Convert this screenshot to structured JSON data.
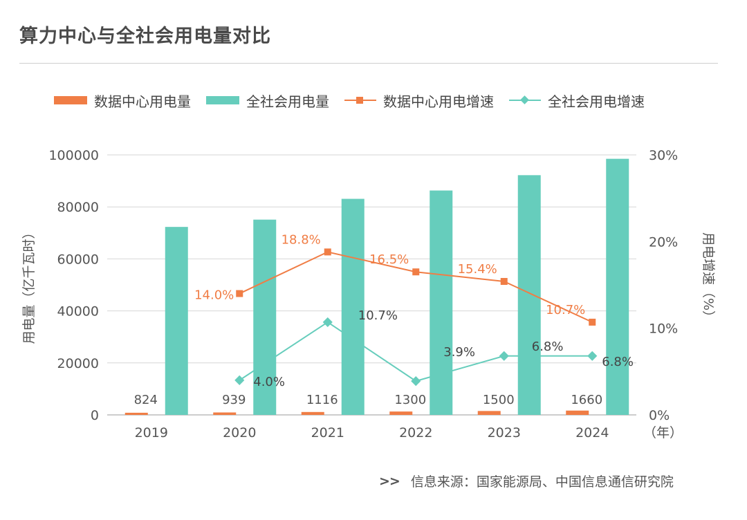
{
  "title": "算力中心与全社会用电量对比",
  "source": {
    "arrows": ">>",
    "text": "信息来源：国家能源局、中国信息通信研究院"
  },
  "legend": [
    {
      "label": "数据中心用电量",
      "kind": "bar",
      "color": "#f07d45"
    },
    {
      "label": "全社会用电量",
      "kind": "bar",
      "color": "#66cdbc"
    },
    {
      "label": "数据中心用电增速",
      "kind": "line-square",
      "color": "#f07d45"
    },
    {
      "label": "全社会用电增速",
      "kind": "line-diamond",
      "color": "#66cdbc"
    }
  ],
  "chart_data": {
    "type": "bar",
    "title": "算力中心与全社会用电量对比",
    "categories": [
      "2019",
      "2020",
      "2021",
      "2022",
      "2023",
      "2024"
    ],
    "x_unit_label": "（年）",
    "ylabel": "用电量（亿千瓦时）",
    "ylim": [
      0,
      100000
    ],
    "yticks": [
      0,
      20000,
      40000,
      60000,
      80000,
      100000
    ],
    "y2label": "用电增速（%）",
    "y2lim": [
      0,
      30
    ],
    "y2ticks": [
      "0%",
      "10%",
      "20%",
      "30%"
    ],
    "grid": true,
    "series": [
      {
        "name": "数据中心用电量",
        "type": "bar",
        "axis": "left",
        "color": "#f07d45",
        "values": [
          824,
          939,
          1116,
          1300,
          1500,
          1660
        ],
        "labels": [
          "824",
          "939",
          "1116",
          "1300",
          "1500",
          "1660"
        ]
      },
      {
        "name": "全社会用电量",
        "type": "bar",
        "axis": "left",
        "color": "#66cdbc",
        "values": [
          72300,
          75100,
          83100,
          86300,
          92200,
          98500
        ]
      },
      {
        "name": "数据中心用电增速",
        "type": "line",
        "axis": "right",
        "marker": "square",
        "color": "#f07d45",
        "values": [
          null,
          14.0,
          18.8,
          16.5,
          15.4,
          10.7
        ],
        "labels": [
          null,
          "14.0%",
          "18.8%",
          "16.5%",
          "15.4%",
          "10.7%"
        ]
      },
      {
        "name": "全社会用电增速",
        "type": "line",
        "axis": "right",
        "marker": "diamond",
        "color": "#66cdbc",
        "values": [
          null,
          4.0,
          10.7,
          3.9,
          6.8,
          6.8
        ],
        "labels": [
          null,
          "4.0%",
          "10.7%",
          "3.9%",
          "6.8%",
          "6.8%"
        ]
      }
    ]
  }
}
